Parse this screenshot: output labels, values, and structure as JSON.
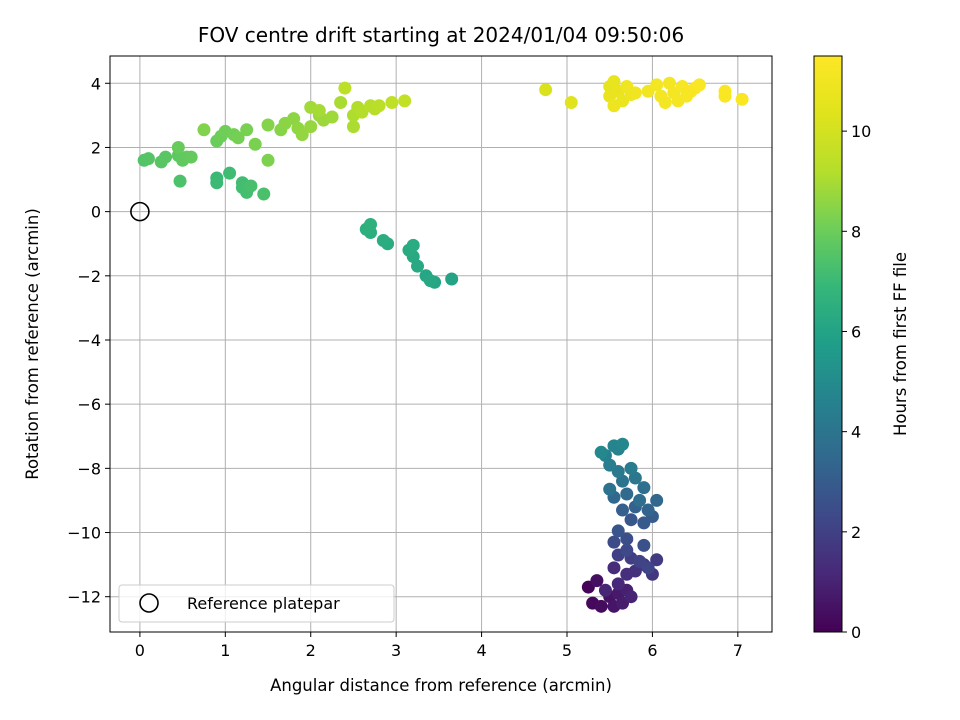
{
  "chart_data": {
    "type": "scatter",
    "title": "FOV centre drift starting at 2024/01/04 09:50:06",
    "xlabel": "Angular distance from reference (arcmin)",
    "ylabel": "Rotation from reference (arcmin)",
    "xlim": [
      -0.35,
      7.4
    ],
    "ylim": [
      -13.1,
      4.85
    ],
    "xticks": [
      0,
      1,
      2,
      3,
      4,
      5,
      6,
      7
    ],
    "yticks": [
      4,
      2,
      0,
      -2,
      -4,
      -6,
      -8,
      -10,
      -12
    ],
    "grid": true,
    "colormap": "viridis",
    "colorbar": {
      "label": "Hours from first FF file",
      "range": [
        0,
        11.5
      ],
      "ticks": [
        0,
        2,
        4,
        6,
        8,
        10
      ]
    },
    "legend": {
      "position": "lower-left",
      "entries": [
        "Reference platepar"
      ]
    },
    "reference_point": {
      "x": 0,
      "y": 0,
      "label": "Reference platepar"
    },
    "points": [
      [
        5.25,
        -11.7,
        0.1
      ],
      [
        5.3,
        -12.2,
        0.2
      ],
      [
        5.4,
        -12.3,
        0.3
      ],
      [
        5.35,
        -11.5,
        0.4
      ],
      [
        5.5,
        -12.0,
        0.5
      ],
      [
        5.55,
        -12.3,
        0.6
      ],
      [
        5.6,
        -11.9,
        0.7
      ],
      [
        5.65,
        -12.2,
        0.8
      ],
      [
        5.7,
        -11.8,
        0.9
      ],
      [
        5.75,
        -12.0,
        1.0
      ],
      [
        5.45,
        -11.8,
        1.1
      ],
      [
        5.6,
        -11.6,
        1.2
      ],
      [
        5.55,
        -11.1,
        1.3
      ],
      [
        5.7,
        -11.3,
        1.4
      ],
      [
        5.8,
        -11.2,
        1.5
      ],
      [
        5.9,
        -11.0,
        1.6
      ],
      [
        6.0,
        -11.3,
        1.7
      ],
      [
        6.05,
        -10.85,
        1.8
      ],
      [
        5.75,
        -10.8,
        1.9
      ],
      [
        5.6,
        -10.7,
        2.0
      ],
      [
        5.85,
        -10.9,
        2.1
      ],
      [
        5.95,
        -11.1,
        2.2
      ],
      [
        5.7,
        -10.55,
        2.3
      ],
      [
        5.55,
        -10.3,
        2.4
      ],
      [
        5.7,
        -10.2,
        2.5
      ],
      [
        5.9,
        -10.4,
        2.6
      ],
      [
        5.6,
        -9.95,
        2.7
      ],
      [
        5.75,
        -9.6,
        2.8
      ],
      [
        5.9,
        -9.7,
        2.9
      ],
      [
        6.0,
        -9.5,
        3.0
      ],
      [
        5.65,
        -9.3,
        3.1
      ],
      [
        5.8,
        -9.2,
        3.2
      ],
      [
        5.95,
        -9.3,
        3.3
      ],
      [
        6.05,
        -9.0,
        3.4
      ],
      [
        5.55,
        -8.9,
        3.5
      ],
      [
        5.7,
        -8.8,
        3.6
      ],
      [
        5.85,
        -9.0,
        3.7
      ],
      [
        5.9,
        -8.6,
        3.8
      ],
      [
        5.5,
        -8.65,
        3.9
      ],
      [
        5.65,
        -8.4,
        4.0
      ],
      [
        5.8,
        -8.3,
        4.1
      ],
      [
        5.6,
        -8.1,
        4.2
      ],
      [
        5.75,
        -8.0,
        4.3
      ],
      [
        5.5,
        -7.9,
        4.4
      ],
      [
        5.45,
        -7.6,
        4.5
      ],
      [
        5.6,
        -7.4,
        4.6
      ],
      [
        5.55,
        -7.3,
        4.7
      ],
      [
        5.65,
        -7.25,
        4.8
      ],
      [
        5.4,
        -7.5,
        4.9
      ],
      [
        3.65,
        -2.1,
        6.0
      ],
      [
        3.45,
        -2.2,
        6.05
      ],
      [
        3.35,
        -2.0,
        6.1
      ],
      [
        3.4,
        -2.15,
        6.15
      ],
      [
        3.25,
        -1.7,
        6.2
      ],
      [
        3.2,
        -1.4,
        6.25
      ],
      [
        3.15,
        -1.2,
        6.3
      ],
      [
        3.2,
        -1.05,
        6.35
      ],
      [
        2.9,
        -1.0,
        6.4
      ],
      [
        2.85,
        -0.9,
        6.45
      ],
      [
        2.7,
        -0.65,
        6.5
      ],
      [
        2.65,
        -0.55,
        6.55
      ],
      [
        2.7,
        -0.4,
        6.6
      ],
      [
        0.9,
        1.05,
        7.0
      ],
      [
        0.9,
        0.9,
        7.05
      ],
      [
        1.05,
        1.2,
        7.1
      ],
      [
        1.2,
        0.9,
        7.15
      ],
      [
        1.2,
        0.75,
        7.2
      ],
      [
        1.25,
        0.6,
        7.25
      ],
      [
        1.3,
        0.8,
        7.3
      ],
      [
        1.45,
        0.55,
        7.35
      ],
      [
        0.47,
        0.95,
        7.4
      ],
      [
        0.05,
        1.6,
        7.5
      ],
      [
        0.1,
        1.65,
        7.55
      ],
      [
        0.25,
        1.55,
        7.6
      ],
      [
        0.3,
        1.7,
        7.65
      ],
      [
        0.45,
        1.75,
        7.7
      ],
      [
        0.5,
        1.6,
        7.75
      ],
      [
        0.55,
        1.7,
        7.8
      ],
      [
        0.6,
        1.7,
        7.85
      ],
      [
        0.45,
        2.0,
        7.9
      ],
      [
        0.9,
        2.2,
        7.95
      ],
      [
        0.95,
        2.35,
        8.0
      ],
      [
        1.0,
        2.5,
        8.05
      ],
      [
        1.1,
        2.4,
        8.1
      ],
      [
        1.15,
        2.3,
        8.15
      ],
      [
        1.25,
        2.55,
        8.2
      ],
      [
        1.35,
        2.1,
        8.25
      ],
      [
        1.5,
        1.6,
        8.3
      ],
      [
        0.75,
        2.55,
        8.35
      ],
      [
        1.5,
        2.7,
        8.4
      ],
      [
        1.65,
        2.55,
        8.45
      ],
      [
        1.7,
        2.75,
        8.5
      ],
      [
        1.8,
        2.9,
        8.55
      ],
      [
        1.85,
        2.6,
        8.6
      ],
      [
        1.9,
        2.4,
        8.65
      ],
      [
        2.0,
        2.65,
        8.7
      ],
      [
        2.1,
        3.0,
        8.75
      ],
      [
        2.15,
        2.85,
        8.8
      ],
      [
        2.25,
        2.95,
        8.85
      ],
      [
        2.0,
        3.25,
        8.9
      ],
      [
        2.1,
        3.15,
        8.95
      ],
      [
        2.35,
        3.4,
        9.0
      ],
      [
        2.5,
        2.65,
        9.05
      ],
      [
        2.5,
        3.0,
        9.1
      ],
      [
        2.55,
        3.25,
        9.15
      ],
      [
        2.6,
        3.1,
        9.2
      ],
      [
        2.7,
        3.3,
        9.25
      ],
      [
        2.75,
        3.2,
        9.3
      ],
      [
        2.8,
        3.3,
        9.35
      ],
      [
        2.4,
        3.85,
        9.4
      ],
      [
        2.95,
        3.4,
        9.5
      ],
      [
        3.1,
        3.45,
        9.55
      ],
      [
        4.75,
        3.8,
        10.2
      ],
      [
        5.05,
        3.4,
        10.4
      ],
      [
        5.5,
        3.9,
        10.6
      ],
      [
        5.55,
        4.05,
        10.65
      ],
      [
        5.5,
        3.6,
        10.7
      ],
      [
        5.6,
        3.75,
        10.75
      ],
      [
        5.65,
        3.45,
        10.8
      ],
      [
        5.75,
        3.65,
        10.85
      ],
      [
        5.55,
        3.3,
        10.9
      ],
      [
        5.7,
        3.9,
        10.95
      ],
      [
        5.8,
        3.7,
        11.0
      ],
      [
        5.95,
        3.75,
        11.05
      ],
      [
        6.05,
        3.95,
        11.1
      ],
      [
        6.1,
        3.6,
        11.1
      ],
      [
        6.15,
        3.4,
        11.15
      ],
      [
        6.2,
        4.0,
        11.15
      ],
      [
        6.25,
        3.7,
        11.2
      ],
      [
        6.3,
        3.45,
        11.2
      ],
      [
        6.35,
        3.9,
        11.25
      ],
      [
        6.4,
        3.6,
        11.25
      ],
      [
        6.45,
        3.75,
        11.3
      ],
      [
        6.5,
        3.85,
        11.3
      ],
      [
        6.55,
        3.95,
        11.35
      ],
      [
        6.85,
        3.6,
        11.35
      ],
      [
        6.85,
        3.75,
        11.4
      ],
      [
        7.05,
        3.5,
        11.4
      ]
    ]
  }
}
